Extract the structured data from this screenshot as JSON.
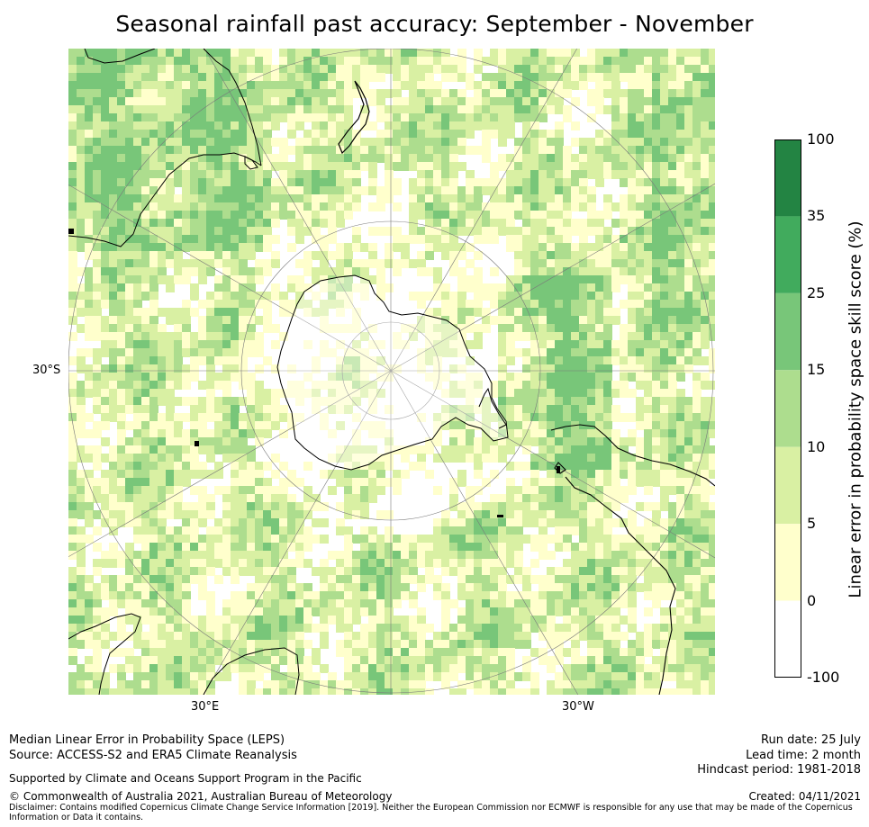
{
  "title": "Seasonal rainfall past accuracy: September - November",
  "map": {
    "projection": "south polar stereographic",
    "lat_label": "30°S",
    "lon_labels": [
      "30°E",
      "30°W"
    ],
    "land_outline_color": "#000000",
    "graticule_color": "#7a7a7a"
  },
  "colorbar": {
    "title": "Linear error in probability space skill score (%)",
    "ticks": [
      "100",
      "35",
      "25",
      "15",
      "10",
      "5",
      "0",
      "-100"
    ],
    "bins": [
      {
        "from": -100,
        "to": 0,
        "color": "#ffffff"
      },
      {
        "from": 0,
        "to": 5,
        "color": "#ffffcc"
      },
      {
        "from": 5,
        "to": 10,
        "color": "#d9f0a3"
      },
      {
        "from": 10,
        "to": 15,
        "color": "#addd8e"
      },
      {
        "from": 15,
        "to": 25,
        "color": "#78c679"
      },
      {
        "from": 25,
        "to": 35,
        "color": "#41ab5d"
      },
      {
        "from": 35,
        "to": 100,
        "color": "#238443"
      }
    ]
  },
  "footer": {
    "line1": "Median Linear Error in Probability Space (LEPS)",
    "line2": "Source: ACCESS-S2 and ERA5 Climate Reanalysis",
    "support": "Supported by Climate and Oceans Support Program in the Pacific",
    "copyright": "© Commonwealth of Australia 2021, Australian Bureau of Meteorology",
    "disclaimer1": "Disclaimer: Contains modified Copernicus Climate Change Service Information [2019]. Neither the European Commission nor ECMWF is responsible for any use that may be made of the Copernicus",
    "disclaimer2": "Information or Data it contains.",
    "run_date": "Run date: 25 July",
    "lead_time": "Lead time: 2 month",
    "hindcast": "Hindcast period: 1981-2018",
    "created": "Created: 04/11/2021"
  }
}
